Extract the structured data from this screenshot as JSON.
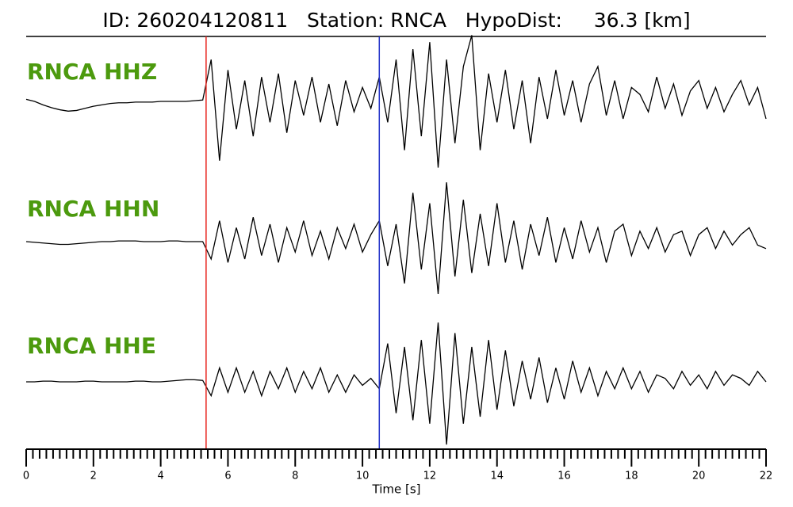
{
  "chart_data": {
    "type": "waveform",
    "title": "ID: 260204120811   Station: RNCA   HypoDist:     36.3 [km]",
    "xlabel": "Time [s]",
    "xlim": [
      0,
      22
    ],
    "xticks": [
      0,
      2,
      4,
      6,
      8,
      10,
      12,
      14,
      16,
      18,
      20,
      22
    ],
    "xminor_step": 0.2,
    "ylim": [
      -1,
      1
    ],
    "markers": [
      {
        "x": 5.35,
        "color": "#e8251f"
      },
      {
        "x": 10.5,
        "color": "#1f2fc8"
      }
    ],
    "label_color": "#4c9a0e",
    "x": [
      0,
      0.25,
      0.5,
      0.75,
      1,
      1.25,
      1.5,
      1.75,
      2,
      2.25,
      2.5,
      2.75,
      3,
      3.25,
      3.5,
      3.75,
      4,
      4.25,
      4.5,
      4.75,
      5,
      5.25,
      5.5,
      5.75,
      6,
      6.25,
      6.5,
      6.75,
      7,
      7.25,
      7.5,
      7.75,
      8,
      8.25,
      8.5,
      8.75,
      9,
      9.25,
      9.5,
      9.75,
      10,
      10.25,
      10.5,
      10.75,
      11,
      11.25,
      11.5,
      11.75,
      12,
      12.25,
      12.5,
      12.75,
      13,
      13.25,
      13.5,
      13.75,
      14,
      14.25,
      14.5,
      14.75,
      15,
      15.25,
      15.5,
      15.75,
      16,
      16.25,
      16.5,
      16.75,
      17,
      17.25,
      17.5,
      17.75,
      18,
      18.25,
      18.5,
      18.75,
      19,
      19.25,
      19.5,
      19.75,
      20,
      20.25,
      20.5,
      20.75,
      21,
      21.25,
      21.5,
      21.75,
      22
    ],
    "series": [
      {
        "name": "RNCA HHZ",
        "color": "#000000",
        "values": [
          0.03,
          0.0,
          -0.05,
          -0.09,
          -0.12,
          -0.14,
          -0.13,
          -0.1,
          -0.07,
          -0.05,
          -0.03,
          -0.02,
          -0.02,
          -0.01,
          -0.01,
          -0.01,
          0.0,
          0.0,
          0.0,
          0.0,
          0.01,
          0.02,
          0.6,
          -0.85,
          0.45,
          -0.4,
          0.3,
          -0.5,
          0.35,
          -0.3,
          0.4,
          -0.45,
          0.3,
          -0.2,
          0.35,
          -0.3,
          0.25,
          -0.35,
          0.3,
          -0.15,
          0.2,
          -0.1,
          0.35,
          -0.3,
          0.6,
          -0.7,
          0.75,
          -0.5,
          0.85,
          -0.95,
          0.6,
          -0.6,
          0.5,
          0.95,
          -0.7,
          0.4,
          -0.3,
          0.45,
          -0.4,
          0.3,
          -0.6,
          0.35,
          -0.25,
          0.45,
          -0.2,
          0.3,
          -0.3,
          0.25,
          0.5,
          -0.2,
          0.3,
          -0.25,
          0.2,
          0.1,
          -0.15,
          0.35,
          -0.1,
          0.25,
          -0.2,
          0.15,
          0.3,
          -0.1,
          0.2,
          -0.15,
          0.1,
          0.3,
          -0.05,
          0.2,
          -0.25
        ]
      },
      {
        "name": "RNCA HHN",
        "color": "#000000",
        "values": [
          0.0,
          -0.01,
          -0.02,
          -0.03,
          -0.04,
          -0.04,
          -0.03,
          -0.02,
          -0.01,
          0.0,
          0.0,
          0.01,
          0.01,
          0.01,
          0.0,
          0.0,
          0.0,
          0.01,
          0.01,
          0.0,
          0.0,
          0.0,
          -0.25,
          0.3,
          -0.3,
          0.2,
          -0.25,
          0.35,
          -0.2,
          0.25,
          -0.3,
          0.2,
          -0.15,
          0.3,
          -0.2,
          0.15,
          -0.25,
          0.2,
          -0.1,
          0.25,
          -0.15,
          0.1,
          0.3,
          -0.35,
          0.25,
          -0.6,
          0.7,
          -0.4,
          0.55,
          -0.75,
          0.85,
          -0.5,
          0.6,
          -0.45,
          0.4,
          -0.35,
          0.55,
          -0.3,
          0.3,
          -0.4,
          0.25,
          -0.2,
          0.35,
          -0.3,
          0.2,
          -0.25,
          0.3,
          -0.15,
          0.2,
          -0.3,
          0.15,
          0.25,
          -0.2,
          0.15,
          -0.1,
          0.2,
          -0.15,
          0.1,
          0.15,
          -0.2,
          0.1,
          0.2,
          -0.1,
          0.15,
          -0.05,
          0.1,
          0.2,
          -0.05,
          -0.1
        ]
      },
      {
        "name": "RNCA HHE",
        "color": "#000000",
        "values": [
          0.0,
          0.0,
          0.01,
          0.01,
          0.0,
          0.0,
          0.0,
          0.01,
          0.01,
          0.0,
          0.0,
          0.0,
          0.0,
          0.01,
          0.01,
          0.0,
          0.0,
          0.01,
          0.02,
          0.03,
          0.03,
          0.02,
          -0.2,
          0.2,
          -0.15,
          0.2,
          -0.15,
          0.15,
          -0.2,
          0.15,
          -0.1,
          0.2,
          -0.15,
          0.15,
          -0.1,
          0.2,
          -0.15,
          0.1,
          -0.15,
          0.1,
          -0.05,
          0.05,
          -0.1,
          0.55,
          -0.45,
          0.5,
          -0.55,
          0.6,
          -0.6,
          0.85,
          -0.9,
          0.7,
          -0.6,
          0.5,
          -0.5,
          0.6,
          -0.4,
          0.45,
          -0.35,
          0.3,
          -0.25,
          0.35,
          -0.3,
          0.2,
          -0.25,
          0.3,
          -0.15,
          0.2,
          -0.2,
          0.15,
          -0.1,
          0.2,
          -0.1,
          0.15,
          -0.15,
          0.1,
          0.05,
          -0.1,
          0.15,
          -0.05,
          0.1,
          -0.1,
          0.15,
          -0.05,
          0.1,
          0.05,
          -0.05,
          0.15,
          0.0
        ]
      }
    ]
  }
}
